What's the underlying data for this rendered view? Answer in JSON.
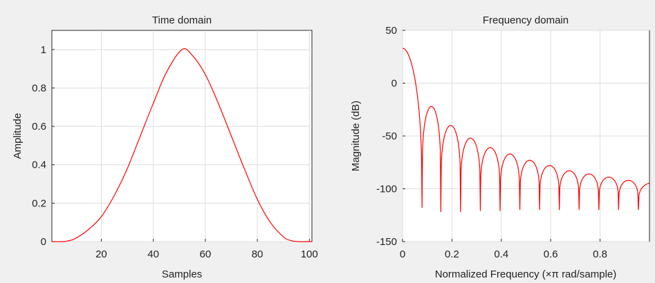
{
  "figure": {
    "background": "#f0f0f0",
    "trace_color": "#ff0000"
  },
  "chart_data": [
    {
      "type": "line",
      "title": "Time domain",
      "xlabel": "Samples",
      "ylabel": "Amplitude",
      "xlim": [
        1,
        101
      ],
      "ylim": [
        0,
        1.1
      ],
      "xticks": [
        20,
        40,
        60,
        80,
        100
      ],
      "xtick_labels": [
        "20",
        "40",
        "60",
        "80",
        "100"
      ],
      "yticks": [
        0,
        0.2,
        0.4,
        0.6,
        0.8,
        1
      ],
      "ytick_labels": [
        "0",
        "0.2",
        "0.4",
        "0.6",
        "0.8",
        "1"
      ],
      "grid": true,
      "series": [
        {
          "color": "#ff0000",
          "x": [
            1,
            5,
            7,
            10,
            15,
            20,
            25,
            30,
            35,
            40,
            45,
            51,
            55,
            60,
            65,
            70,
            75,
            80,
            85,
            90,
            93,
            96,
            101
          ],
          "y": [
            0,
            0,
            0.003,
            0.016,
            0.062,
            0.13,
            0.24,
            0.38,
            0.55,
            0.72,
            0.88,
            1.0,
            0.97,
            0.87,
            0.72,
            0.55,
            0.38,
            0.22,
            0.1,
            0.025,
            0.005,
            0,
            0
          ]
        }
      ]
    },
    {
      "type": "line",
      "title": "Frequency domain",
      "xlabel": "Normalized Frequency  (×π rad/sample)",
      "ylabel": "Magnitude (dB)",
      "xlim": [
        0,
        1
      ],
      "ylim": [
        -150,
        50
      ],
      "xticks": [
        0,
        0.2,
        0.4,
        0.6,
        0.8
      ],
      "xtick_labels": [
        "0",
        "0.2",
        "0.4",
        "0.6",
        "0.8"
      ],
      "yticks": [
        -150,
        -100,
        -50,
        0,
        50
      ],
      "ytick_labels": [
        "-150",
        "-100",
        "-50",
        "0",
        "50"
      ],
      "grid": true,
      "dc_level": 33,
      "nulls": [
        0.079,
        0.155,
        0.235,
        0.315,
        0.395,
        0.475,
        0.555,
        0.635,
        0.715,
        0.795,
        0.875,
        0.955
      ],
      "null_depths": [
        -118,
        -122,
        -122,
        -121,
        -121,
        -120,
        -120,
        -120,
        -120,
        -120,
        -120,
        -120
      ],
      "lobe_peaks": [
        -22,
        -40,
        -52,
        -61,
        -67,
        -73,
        -78,
        -83,
        -86,
        -89,
        -92,
        -94
      ],
      "series": [
        {
          "color": "#ff0000"
        }
      ]
    }
  ]
}
